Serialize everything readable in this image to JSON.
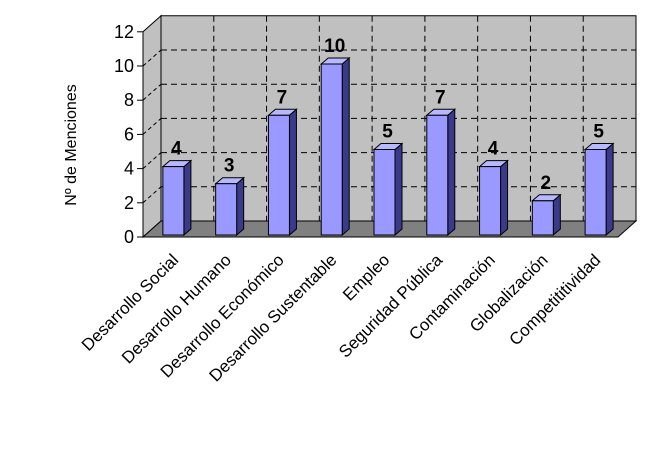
{
  "chart_data": {
    "type": "bar",
    "title": "",
    "xlabel": "",
    "ylabel": "Nº de Menciones",
    "ylim": [
      0,
      12
    ],
    "yticks": [
      0,
      2,
      4,
      6,
      8,
      10,
      12
    ],
    "grid": true,
    "categories": [
      "Desarrollo Social",
      "Desarrollo Humano",
      "Desarrollo Económico",
      "Desarrollo Sustentable",
      "Empleo",
      "Seguridad Pública",
      "Contaminación",
      "Globalización",
      "Competititividad"
    ],
    "values": [
      4,
      3,
      7,
      10,
      5,
      7,
      4,
      2,
      5
    ],
    "colors": {
      "bar_front": "#9999ff",
      "bar_side": "#3a3a8a",
      "bar_top": "#b8b8ff",
      "wall": "#c0c0c0",
      "floor": "#808080"
    }
  }
}
